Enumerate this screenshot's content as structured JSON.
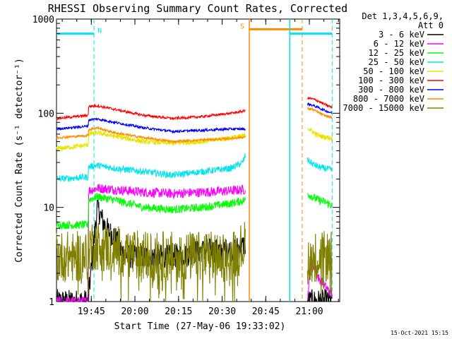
{
  "chart_data": {
    "type": "line",
    "title": "RHESSI Observing Summary Count Rates, Corrected",
    "xlabel": "Start Time (27-May-06 19:33:02)",
    "ylabel": "Corrected Count Rate (s⁻¹ detector⁻¹)",
    "yscale": "log",
    "ylim": [
      1,
      1000
    ],
    "xlim_minutes": [
      0,
      97.4
    ],
    "y_ticks": [
      "1",
      "10",
      "100",
      "1000"
    ],
    "x_ticks": [
      {
        "label": "19:45",
        "minutes": 11.97
      },
      {
        "label": "20:00",
        "minutes": 26.97
      },
      {
        "label": "20:15",
        "minutes": 41.97
      },
      {
        "label": "20:30",
        "minutes": 56.97
      },
      {
        "label": "20:45",
        "minutes": 71.97
      },
      {
        "label": "21:00",
        "minutes": 86.97
      }
    ],
    "detectors": "Det 1,3,4,5,6,9,",
    "attenuator": "Att 0",
    "date_stamp": "15-Oct-2021 15:15",
    "flag_labels": {
      "night": "N",
      "saa": "S"
    },
    "colors": {
      "axis": "#000000",
      "title": "#000000",
      "night_flag": "#00e5ee",
      "saa_flag": "#ff8c00"
    },
    "flags": [
      {
        "label": "N",
        "color": "#00e5ee",
        "level": 700,
        "start": 0,
        "end": 12.9,
        "solid_marker": null,
        "dashed_marker": 12.9
      },
      {
        "label": "S",
        "color": "#ff8c00",
        "level": 780,
        "start": 66.3,
        "end": 84.5,
        "solid_marker": 66.3,
        "dashed_marker": 84.5
      },
      {
        "label": "",
        "color": "#00e5ee",
        "level": 700,
        "start": 80.2,
        "end": 94.8,
        "solid_marker": 80.2,
        "dashed_marker": 94.8
      }
    ],
    "segments": [
      [
        0,
        65
      ],
      [
        86.3,
        94.8
      ]
    ],
    "series": [
      {
        "name": "3 - 6 keV",
        "color": "#000000",
        "noise": 0.3,
        "points": [
          [
            0,
            1
          ],
          [
            10.9,
            1
          ],
          [
            11,
            1.1
          ],
          [
            14,
            10
          ],
          [
            15,
            8.5
          ],
          [
            16,
            7
          ],
          [
            18,
            5.5
          ],
          [
            20,
            5
          ],
          [
            22,
            3.5
          ],
          [
            25,
            3
          ],
          [
            30,
            3
          ],
          [
            40,
            3
          ],
          [
            45,
            3.2
          ],
          [
            50,
            3.5
          ],
          [
            55,
            3.5
          ],
          [
            60,
            3.5
          ],
          [
            65,
            4
          ],
          [
            86.3,
            1
          ],
          [
            94.8,
            1
          ]
        ]
      },
      {
        "name": "6 - 12 keV",
        "color": "#ff00ff",
        "noise": 0.12,
        "points": [
          [
            0,
            1
          ],
          [
            10.9,
            1
          ],
          [
            11,
            15
          ],
          [
            14,
            16
          ],
          [
            20,
            15.5
          ],
          [
            30,
            14.5
          ],
          [
            40,
            14
          ],
          [
            50,
            14.5
          ],
          [
            60,
            15
          ],
          [
            65,
            15.5
          ],
          [
            86.3,
            1
          ],
          [
            87.5,
            3
          ],
          [
            88,
            2.5
          ],
          [
            90,
            1.8
          ],
          [
            92,
            1.5
          ],
          [
            94.8,
            1.2
          ]
        ]
      },
      {
        "name": "12 - 25 keV",
        "color": "#00ff00",
        "noise": 0.1,
        "points": [
          [
            0,
            6.5
          ],
          [
            10.9,
            6.5
          ],
          [
            11,
            12
          ],
          [
            14,
            13
          ],
          [
            20,
            12
          ],
          [
            30,
            10
          ],
          [
            40,
            9.5
          ],
          [
            50,
            10
          ],
          [
            60,
            11
          ],
          [
            65,
            12
          ],
          [
            86.3,
            14
          ],
          [
            88,
            13
          ],
          [
            90,
            12
          ],
          [
            92,
            11.5
          ],
          [
            94.8,
            10.5
          ]
        ]
      },
      {
        "name": "25 - 50 keV",
        "color": "#00e5ee",
        "noise": 0.08,
        "points": [
          [
            0,
            20
          ],
          [
            10.9,
            21
          ],
          [
            11,
            27
          ],
          [
            14,
            28
          ],
          [
            20,
            26
          ],
          [
            30,
            24
          ],
          [
            40,
            22
          ],
          [
            50,
            24
          ],
          [
            60,
            26
          ],
          [
            64,
            30
          ],
          [
            65,
            36
          ],
          [
            86.3,
            32
          ],
          [
            88,
            29
          ],
          [
            90,
            27
          ],
          [
            92,
            26
          ],
          [
            94.8,
            25
          ]
        ]
      },
      {
        "name": "50 - 100 keV",
        "color": "#e5e500",
        "noise": 0.06,
        "points": [
          [
            0,
            42
          ],
          [
            10.9,
            46
          ],
          [
            11,
            60
          ],
          [
            14,
            62
          ],
          [
            20,
            57
          ],
          [
            30,
            50
          ],
          [
            40,
            48
          ],
          [
            50,
            50
          ],
          [
            60,
            55
          ],
          [
            65,
            58
          ],
          [
            86.3,
            70
          ],
          [
            88,
            64
          ],
          [
            90,
            58
          ],
          [
            92,
            56
          ],
          [
            94.8,
            54
          ]
        ]
      },
      {
        "name": "100 - 300 keV",
        "color": "#ff0000",
        "noise": 0.03,
        "points": [
          [
            0,
            88
          ],
          [
            10.9,
            95
          ],
          [
            11,
            118
          ],
          [
            14,
            120
          ],
          [
            20,
            110
          ],
          [
            30,
            95
          ],
          [
            40,
            88
          ],
          [
            50,
            92
          ],
          [
            60,
            100
          ],
          [
            65,
            106
          ],
          [
            86.3,
            145
          ],
          [
            88,
            142
          ],
          [
            90,
            135
          ],
          [
            92,
            125
          ],
          [
            94.8,
            115
          ]
        ]
      },
      {
        "name": "300 - 800 keV",
        "color": "#0000ff",
        "noise": 0.03,
        "points": [
          [
            0,
            68
          ],
          [
            10.9,
            73
          ],
          [
            11,
            85
          ],
          [
            14,
            87
          ],
          [
            20,
            80
          ],
          [
            30,
            70
          ],
          [
            40,
            64
          ],
          [
            50,
            66
          ],
          [
            60,
            68
          ],
          [
            65,
            68
          ],
          [
            86.3,
            125
          ],
          [
            88,
            122
          ],
          [
            90,
            115
          ],
          [
            92,
            108
          ],
          [
            94.8,
            100
          ]
        ]
      },
      {
        "name": "800 - 7000 keV",
        "color": "#ff8c00",
        "noise": 0.03,
        "points": [
          [
            0,
            55
          ],
          [
            10.9,
            58
          ],
          [
            11,
            67
          ],
          [
            14,
            70
          ],
          [
            20,
            62
          ],
          [
            30,
            55
          ],
          [
            40,
            50
          ],
          [
            50,
            52
          ],
          [
            60,
            54
          ],
          [
            65,
            56
          ],
          [
            86.3,
            112
          ],
          [
            88,
            110
          ],
          [
            90,
            102
          ],
          [
            92,
            95
          ],
          [
            94.8,
            90
          ]
        ]
      },
      {
        "name": "7000 - 15000 keV",
        "color": "#808000",
        "noise": 0.45,
        "spiky": true,
        "points": [
          [
            0,
            3
          ],
          [
            10.9,
            3
          ],
          [
            11,
            4
          ],
          [
            14,
            4
          ],
          [
            20,
            3.5
          ],
          [
            30,
            3
          ],
          [
            40,
            3
          ],
          [
            50,
            3
          ],
          [
            60,
            3
          ],
          [
            65,
            4
          ],
          [
            86.3,
            3
          ],
          [
            94.8,
            3
          ]
        ]
      }
    ]
  }
}
